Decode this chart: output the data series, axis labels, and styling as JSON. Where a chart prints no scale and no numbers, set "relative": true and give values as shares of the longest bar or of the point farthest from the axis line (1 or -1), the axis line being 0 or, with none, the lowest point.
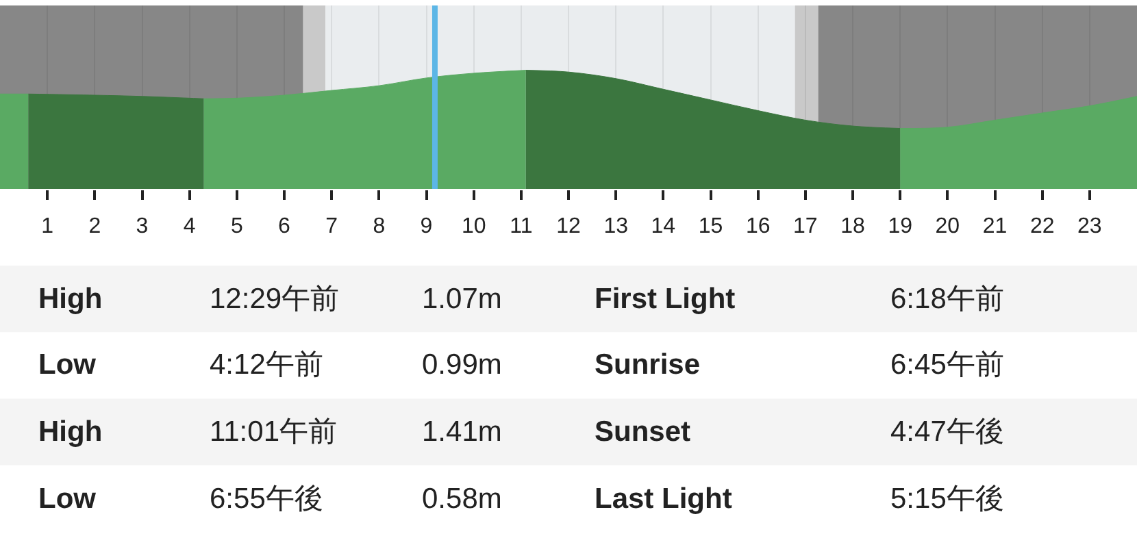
{
  "chart_data": {
    "type": "area",
    "relative": true,
    "xlim": [
      0,
      24
    ],
    "xticks": [
      1,
      2,
      3,
      4,
      5,
      6,
      7,
      8,
      9,
      10,
      11,
      12,
      13,
      14,
      15,
      16,
      17,
      18,
      19,
      20,
      21,
      22,
      23
    ],
    "grid": "x",
    "series": [
      {
        "color": "#5aaa63",
        "x": [
          0,
          0.6
        ],
        "values": [
          0.8,
          0.8
        ]
      },
      {
        "color": "#3b763f",
        "x": [
          0.6,
          2,
          3,
          4.3
        ],
        "values": [
          0.8,
          0.79,
          0.78,
          0.76
        ]
      },
      {
        "color": "#5aaa63",
        "x": [
          4.3,
          5,
          6,
          7,
          8,
          9,
          10,
          11.1
        ],
        "values": [
          0.76,
          0.765,
          0.79,
          0.83,
          0.87,
          0.935,
          0.975,
          1.0
        ]
      },
      {
        "color": "#3b763f",
        "x": [
          11.1,
          12,
          13,
          14,
          15,
          16,
          17,
          18,
          19
        ],
        "values": [
          1.0,
          0.985,
          0.93,
          0.84,
          0.75,
          0.66,
          0.58,
          0.53,
          0.51
        ]
      },
      {
        "color": "#5aaa63",
        "x": [
          19,
          20,
          21,
          22,
          23,
          24
        ],
        "values": [
          0.51,
          0.52,
          0.58,
          0.64,
          0.7,
          0.78
        ]
      }
    ],
    "bands": [
      {
        "axis": "x",
        "from": 0,
        "to": 6.4,
        "color": "#878787"
      },
      {
        "axis": "x",
        "from": 6.4,
        "to": 6.87,
        "color": "#c9c9c9"
      },
      {
        "axis": "x",
        "from": 6.87,
        "to": 16.78,
        "color": "#eaedef"
      },
      {
        "axis": "x",
        "from": 16.78,
        "to": 17.27,
        "color": "#c9c9c9"
      },
      {
        "axis": "x",
        "from": 17.27,
        "to": 24,
        "color": "#878787"
      }
    ],
    "ref_lines": [
      {
        "axis": "x",
        "value": 9.18,
        "color": "#5cb6e6"
      }
    ],
    "annotations": [
      "High",
      "12:29午前",
      "1.07m",
      "First Light",
      "6:18午前",
      "Low",
      "4:12午前",
      "0.99m",
      "Sunrise",
      "6:45午前",
      "High",
      "11:01午前",
      "1.41m",
      "Sunset",
      "4:47午後",
      "Low",
      "6:55午後",
      "0.58m",
      "Last Light",
      "5:15午後"
    ]
  }
}
